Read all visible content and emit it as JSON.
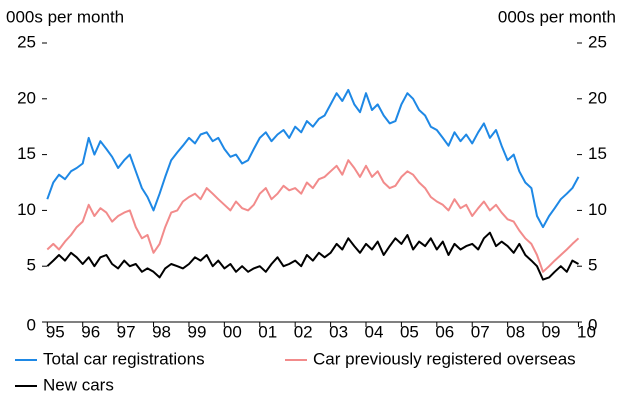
{
  "chart_data": {
    "type": "line",
    "y_label": "000s per month",
    "y2_label": "000s per month",
    "x": [
      1995.0,
      1995.17,
      1995.33,
      1995.5,
      1995.67,
      1995.83,
      1996.0,
      1996.17,
      1996.33,
      1996.5,
      1996.67,
      1996.83,
      1997.0,
      1997.17,
      1997.33,
      1997.5,
      1997.67,
      1997.83,
      1998.0,
      1998.17,
      1998.33,
      1998.5,
      1998.67,
      1998.83,
      1999.0,
      1999.17,
      1999.33,
      1999.5,
      1999.67,
      1999.83,
      2000.0,
      2000.17,
      2000.33,
      2000.5,
      2000.67,
      2000.83,
      2001.0,
      2001.17,
      2001.33,
      2001.5,
      2001.67,
      2001.83,
      2002.0,
      2002.17,
      2002.33,
      2002.5,
      2002.67,
      2002.83,
      2003.0,
      2003.17,
      2003.33,
      2003.5,
      2003.67,
      2003.83,
      2004.0,
      2004.17,
      2004.33,
      2004.5,
      2004.67,
      2004.83,
      2005.0,
      2005.17,
      2005.33,
      2005.5,
      2005.67,
      2005.83,
      2006.0,
      2006.17,
      2006.33,
      2006.5,
      2006.67,
      2006.83,
      2007.0,
      2007.17,
      2007.33,
      2007.5,
      2007.67,
      2007.83,
      2008.0,
      2008.17,
      2008.33,
      2008.5,
      2008.67,
      2008.83,
      2009.0,
      2009.17,
      2009.33,
      2009.5,
      2009.67,
      2009.83,
      2010.0
    ],
    "series": [
      {
        "name": "Total car registrations",
        "color": "#1e88e5",
        "values": [
          11.0,
          12.5,
          13.2,
          12.8,
          13.5,
          13.8,
          14.2,
          16.5,
          15.0,
          16.2,
          15.5,
          14.8,
          13.8,
          14.5,
          15.0,
          13.5,
          12.0,
          11.2,
          10.0,
          11.5,
          13.0,
          14.5,
          15.2,
          15.8,
          16.5,
          16.0,
          16.8,
          17.0,
          16.2,
          16.5,
          15.5,
          14.8,
          15.0,
          14.2,
          14.5,
          15.5,
          16.5,
          17.0,
          16.2,
          16.8,
          17.2,
          16.5,
          17.5,
          17.0,
          18.0,
          17.5,
          18.2,
          18.5,
          19.5,
          20.5,
          19.8,
          20.8,
          19.5,
          18.8,
          20.5,
          19.0,
          19.5,
          18.5,
          17.8,
          18.0,
          19.5,
          20.5,
          20.0,
          19.0,
          18.5,
          17.5,
          17.2,
          16.5,
          15.8,
          17.0,
          16.2,
          16.8,
          16.0,
          17.0,
          17.8,
          16.5,
          17.2,
          15.8,
          14.5,
          15.0,
          13.5,
          12.5,
          12.0,
          9.5,
          8.5,
          9.5,
          10.2,
          11.0,
          11.5,
          12.0,
          13.0
        ]
      },
      {
        "name": "Car previously registered overseas",
        "color": "#f28b8b",
        "values": [
          6.5,
          7.0,
          6.5,
          7.2,
          7.8,
          8.5,
          9.0,
          10.5,
          9.5,
          10.2,
          9.8,
          9.0,
          9.5,
          9.8,
          10.0,
          8.5,
          7.5,
          7.8,
          6.2,
          7.0,
          8.5,
          9.8,
          10.0,
          10.8,
          11.2,
          11.5,
          11.0,
          12.0,
          11.5,
          11.0,
          10.5,
          10.0,
          10.8,
          10.2,
          10.0,
          10.5,
          11.5,
          12.0,
          11.0,
          11.5,
          12.2,
          11.8,
          12.0,
          11.5,
          12.5,
          12.0,
          12.8,
          13.0,
          13.5,
          14.0,
          13.2,
          14.5,
          13.8,
          13.0,
          14.0,
          13.0,
          13.5,
          12.5,
          12.0,
          12.2,
          13.0,
          13.5,
          13.2,
          12.5,
          12.0,
          11.2,
          10.8,
          10.5,
          10.0,
          11.0,
          10.2,
          10.5,
          9.5,
          10.2,
          10.8,
          10.0,
          10.5,
          9.8,
          9.2,
          9.0,
          8.2,
          7.5,
          7.0,
          6.0,
          4.5,
          5.0,
          5.5,
          6.0,
          6.5,
          7.0,
          7.5
        ]
      },
      {
        "name": "New cars",
        "color": "#000000",
        "values": [
          5.0,
          5.5,
          6.0,
          5.5,
          6.2,
          5.8,
          5.2,
          5.8,
          5.0,
          5.8,
          6.0,
          5.2,
          4.8,
          5.5,
          5.0,
          5.2,
          4.5,
          4.8,
          4.5,
          4.0,
          4.8,
          5.2,
          5.0,
          4.8,
          5.2,
          5.8,
          5.5,
          6.0,
          5.0,
          5.5,
          4.8,
          5.2,
          4.5,
          5.0,
          4.5,
          4.8,
          5.0,
          4.5,
          5.2,
          5.8,
          5.0,
          5.2,
          5.5,
          5.0,
          6.0,
          5.5,
          6.2,
          5.8,
          6.2,
          7.0,
          6.5,
          7.5,
          6.8,
          6.2,
          7.0,
          6.5,
          7.2,
          6.0,
          6.8,
          7.5,
          7.0,
          7.8,
          6.5,
          7.2,
          6.8,
          7.5,
          6.5,
          7.2,
          6.0,
          7.0,
          6.5,
          6.8,
          7.0,
          6.5,
          7.5,
          8.0,
          6.8,
          7.2,
          6.8,
          6.2,
          7.0,
          6.0,
          5.5,
          5.0,
          3.8,
          4.0,
          4.5,
          5.0,
          4.5,
          5.5,
          5.2
        ]
      }
    ],
    "xlim": [
      1994.85,
      2010.1
    ],
    "xticks": [
      {
        "value": 1995,
        "label": "95"
      },
      {
        "value": 1996,
        "label": "96"
      },
      {
        "value": 1997,
        "label": "97"
      },
      {
        "value": 1998,
        "label": "98"
      },
      {
        "value": 1999,
        "label": "99"
      },
      {
        "value": 2000,
        "label": "00"
      },
      {
        "value": 2001,
        "label": "01"
      },
      {
        "value": 2002,
        "label": "02"
      },
      {
        "value": 2003,
        "label": "03"
      },
      {
        "value": 2004,
        "label": "04"
      },
      {
        "value": 2005,
        "label": "05"
      },
      {
        "value": 2006,
        "label": "06"
      },
      {
        "value": 2007,
        "label": "07"
      },
      {
        "value": 2008,
        "label": "08"
      },
      {
        "value": 2009,
        "label": "09"
      },
      {
        "value": 2010,
        "label": "10"
      }
    ],
    "ylim": [
      0,
      25
    ],
    "yticks": [
      0,
      5,
      10,
      15,
      20,
      25
    ],
    "y2lim": [
      0,
      25
    ],
    "y2ticks": [
      0,
      5,
      10,
      15,
      20,
      25
    ]
  }
}
